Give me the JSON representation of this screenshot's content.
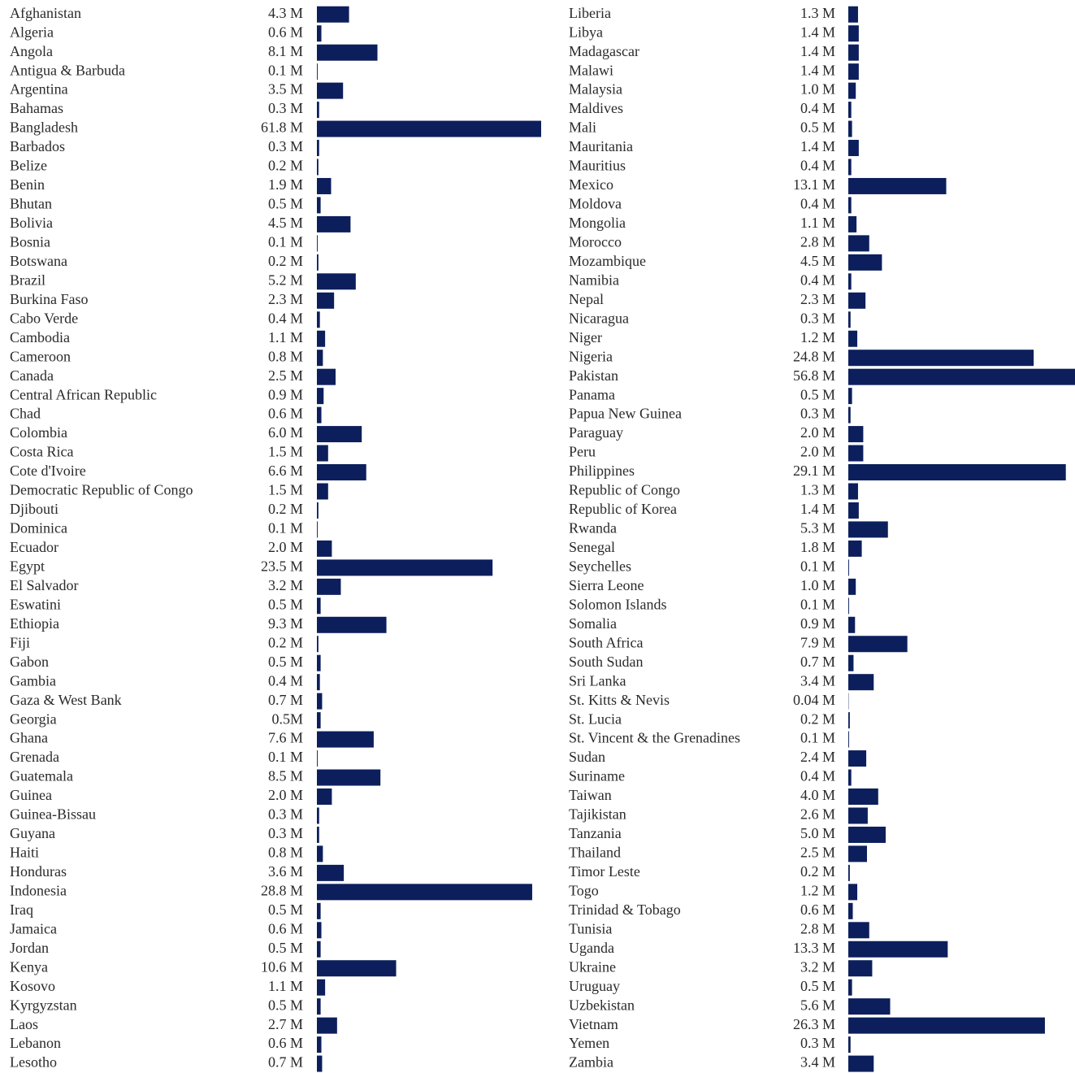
{
  "chart_data": [
    {
      "type": "bar",
      "color": "#0c1f5c",
      "xlim": [
        0,
        30
      ],
      "categories": [
        "Afghanistan",
        "Algeria",
        "Angola",
        "Antigua & Barbuda",
        "Argentina",
        "Bahamas",
        "Bangladesh",
        "Barbados",
        "Belize",
        "Benin",
        "Bhutan",
        "Bolivia",
        "Bosnia",
        "Botswana",
        "Brazil",
        "Burkina Faso",
        "Cabo Verde",
        "Cambodia",
        "Cameroon",
        "Canada",
        "Central African Republic",
        "Chad",
        "Colombia",
        "Costa Rica",
        "Cote d'Ivoire",
        "Democratic Republic of Congo",
        "Djibouti",
        "Dominica",
        "Ecuador",
        "Egypt",
        "El Salvador",
        "Eswatini",
        "Ethiopia",
        "Fiji",
        "Gabon",
        "Gambia",
        "Gaza & West Bank",
        "Georgia",
        "Ghana",
        "Grenada",
        "Guatemala",
        "Guinea",
        "Guinea-Bissau",
        "Guyana",
        "Haiti",
        "Honduras",
        "Indonesia",
        "Iraq",
        "Jamaica",
        "Jordan",
        "Kenya",
        "Kosovo",
        "Kyrgyzstan",
        "Laos",
        "Lebanon",
        "Lesotho"
      ],
      "values": [
        4.3,
        0.6,
        8.1,
        0.1,
        3.5,
        0.3,
        61.8,
        0.3,
        0.2,
        1.9,
        0.5,
        4.5,
        0.1,
        0.2,
        5.2,
        2.3,
        0.4,
        1.1,
        0.8,
        2.5,
        0.9,
        0.6,
        6.0,
        1.5,
        6.6,
        1.5,
        0.2,
        0.1,
        2.0,
        23.5,
        3.2,
        0.5,
        9.3,
        0.2,
        0.5,
        0.4,
        0.7,
        0.5,
        7.6,
        0.1,
        8.5,
        2.0,
        0.3,
        0.3,
        0.8,
        3.6,
        28.8,
        0.5,
        0.6,
        0.5,
        10.6,
        1.1,
        0.5,
        2.7,
        0.6,
        0.7
      ],
      "value_labels": [
        "4.3 M",
        "0.6 M",
        "8.1 M",
        "0.1 M",
        "3.5 M",
        "0.3 M",
        "61.8 M",
        "0.3 M",
        "0.2 M",
        "1.9 M",
        "0.5 M",
        "4.5 M",
        "0.1 M",
        "0.2 M",
        "5.2 M",
        "2.3 M",
        "0.4 M",
        "1.1 M",
        "0.8 M",
        "2.5 M",
        "0.9 M",
        "0.6 M",
        "6.0 M",
        "1.5 M",
        "6.6 M",
        "1.5 M",
        "0.2 M",
        "0.1 M",
        "2.0 M",
        "23.5 M",
        "3.2 M",
        "0.5 M",
        "9.3 M",
        "0.2 M",
        "0.5 M",
        "0.4 M",
        "0.7 M",
        "0.5M",
        "7.6 M",
        "0.1 M",
        "8.5 M",
        "2.0 M",
        "0.3 M",
        "0.3 M",
        "0.8 M",
        "3.6 M",
        "28.8 M",
        "0.5 M",
        "0.6 M",
        "0.5 M",
        "10.6 M",
        "1.1 M",
        "0.5 M",
        "2.7 M",
        "0.6 M",
        "0.7 M"
      ]
    },
    {
      "type": "bar",
      "color": "#0c1f5c",
      "xlim": [
        0,
        30
      ],
      "categories": [
        "Liberia",
        "Libya",
        "Madagascar",
        "Malawi",
        "Malaysia",
        "Maldives",
        "Mali",
        "Mauritania",
        "Mauritius",
        "Mexico",
        "Moldova",
        "Mongolia",
        "Morocco",
        "Mozambique",
        "Namibia",
        "Nepal",
        "Nicaragua",
        "Niger",
        "Nigeria",
        "Pakistan",
        "Panama",
        "Papua New Guinea",
        "Paraguay",
        "Peru",
        "Philippines",
        "Republic of Congo",
        "Republic of Korea",
        "Rwanda",
        "Senegal",
        "Seychelles",
        "Sierra Leone",
        "Solomon Islands",
        "Somalia",
        "South Africa",
        "South Sudan",
        "Sri Lanka",
        "St. Kitts & Nevis",
        "St. Lucia",
        "St. Vincent & the Grenadines",
        "Sudan",
        "Suriname",
        "Taiwan",
        "Tajikistan",
        "Tanzania",
        "Thailand",
        "Timor Leste",
        "Togo",
        "Trinidad & Tobago",
        "Tunisia",
        "Uganda",
        "Ukraine",
        "Uruguay",
        "Uzbekistan",
        "Vietnam",
        "Yemen",
        "Zambia"
      ],
      "values": [
        1.3,
        1.4,
        1.4,
        1.4,
        1.0,
        0.4,
        0.5,
        1.4,
        0.4,
        13.1,
        0.4,
        1.1,
        2.8,
        4.5,
        0.4,
        2.3,
        0.3,
        1.2,
        24.8,
        56.8,
        0.5,
        0.3,
        2.0,
        2.0,
        29.1,
        1.3,
        1.4,
        5.3,
        1.8,
        0.1,
        1.0,
        0.1,
        0.9,
        7.9,
        0.7,
        3.4,
        0.04,
        0.2,
        0.1,
        2.4,
        0.4,
        4.0,
        2.6,
        5.0,
        2.5,
        0.2,
        1.2,
        0.6,
        2.8,
        13.3,
        3.2,
        0.5,
        5.6,
        26.3,
        0.3,
        3.4
      ],
      "value_labels": [
        "1.3 M",
        "1.4 M",
        "1.4 M",
        "1.4 M",
        "1.0 M",
        "0.4 M",
        "0.5 M",
        "1.4 M",
        "0.4 M",
        "13.1 M",
        "0.4 M",
        "1.1 M",
        "2.8 M",
        "4.5 M",
        "0.4 M",
        "2.3 M",
        "0.3 M",
        "1.2 M",
        "24.8 M",
        "56.8 M",
        "0.5 M",
        "0.3 M",
        "2.0 M",
        "2.0 M",
        "29.1 M",
        "1.3 M",
        "1.4 M",
        "5.3 M",
        "1.8 M",
        "0.1 M",
        "1.0 M",
        "0.1 M",
        "0.9 M",
        "7.9 M",
        "0.7 M",
        "3.4 M",
        "0.04 M",
        "0.2 M",
        "0.1 M",
        "2.4 M",
        "0.4 M",
        "4.0 M",
        "2.6 M",
        "5.0 M",
        "2.5 M",
        "0.2 M",
        "1.2 M",
        "0.6 M",
        "2.8 M",
        "13.3 M",
        "3.2 M",
        "0.5 M",
        "5.6 M",
        "26.3 M",
        "0.3 M",
        "3.4 M"
      ]
    }
  ]
}
